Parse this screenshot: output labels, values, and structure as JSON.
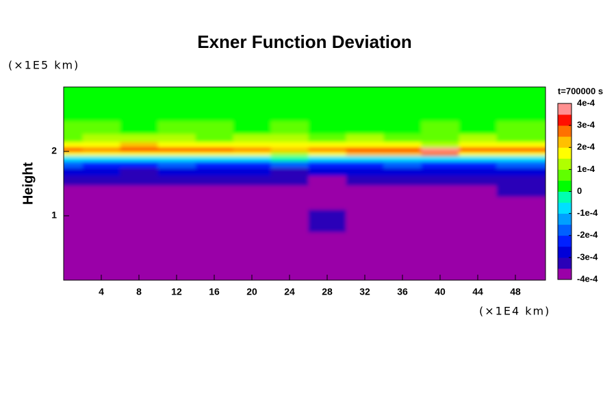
{
  "chart_data": {
    "type": "contour",
    "title": "Exner Function Deviation",
    "y_label": "Height",
    "y_unit": "(×1E5 km)",
    "x_unit": "(×1E4 km)",
    "colorbar_title": "t=700000 s",
    "xlim": [
      0,
      51.2
    ],
    "ylim": [
      0,
      3
    ],
    "xticks": [
      4,
      8,
      12,
      16,
      20,
      24,
      28,
      32,
      36,
      40,
      44,
      48
    ],
    "yticks": [
      1,
      2
    ],
    "zlim": [
      -0.0004,
      0.0004
    ],
    "zticks": [
      {
        "value": 0.0004,
        "label": "4e-4"
      },
      {
        "value": 0.0003,
        "label": "3e-4"
      },
      {
        "value": 0.0002,
        "label": "2e-4"
      },
      {
        "value": 0.0001,
        "label": "1e-4"
      },
      0,
      {
        "value": -0.0001,
        "label": "-1e-4"
      },
      {
        "value": -0.0002,
        "label": "-2e-4"
      },
      {
        "value": -0.0003,
        "label": "-3e-4"
      },
      {
        "value": -0.0004,
        "label": "-4e-4"
      }
    ],
    "colors": [
      "#9a00a8",
      "#2a00b8",
      "#0000d8",
      "#0020ff",
      "#0060ff",
      "#00a0ff",
      "#00e0ff",
      "#00ffb0",
      "#00ff00",
      "#60ff00",
      "#b0ff00",
      "#ffff00",
      "#ffc000",
      "#ff7000",
      "#ff1000",
      "#ff9090"
    ],
    "x": [
      0,
      4,
      8,
      12,
      16,
      20,
      24,
      28,
      32,
      36,
      40,
      44,
      48
    ],
    "y": [
      0.5,
      1.0,
      1.2,
      1.4,
      1.55,
      1.7,
      1.8,
      1.9,
      1.97,
      2.03,
      2.1,
      2.2,
      2.35,
      2.6,
      2.85
    ],
    "z": [
      [
        -0.0004,
        -0.0004,
        -0.0004,
        -0.0004,
        -0.0004,
        -0.0004,
        -0.0004,
        -0.0004,
        -0.0004,
        -0.0004,
        -0.0004,
        -0.0004,
        -0.0004
      ],
      [
        -0.0004,
        -0.0004,
        -0.0004,
        -0.0004,
        -0.0004,
        -0.0004,
        -0.0004,
        -0.00034,
        -0.00036,
        -0.0004,
        -0.0004,
        -0.0004,
        -0.0004
      ],
      [
        -0.00037,
        -0.0004,
        -0.0004,
        -0.0004,
        -0.0004,
        -0.0004,
        -0.0004,
        -0.0004,
        -0.0004,
        -0.0004,
        -0.0004,
        -0.00038,
        -0.00036
      ],
      [
        -0.00036,
        -0.00037,
        -0.00038,
        -0.0004,
        -0.00038,
        -0.00037,
        -0.00037,
        -0.0004,
        -0.0004,
        -0.0004,
        -0.0004,
        -0.00036,
        -0.00035
      ],
      [
        -0.00033,
        -0.00034,
        -0.00035,
        -0.00033,
        -0.00034,
        -0.00035,
        -0.00034,
        -0.00036,
        -0.00033,
        -0.00035,
        -0.00034,
        -0.00033,
        -0.00032
      ],
      [
        -0.00029,
        -0.0003,
        -0.00031,
        -0.0003,
        -0.00029,
        -0.0003,
        -0.00031,
        -0.0003,
        -0.00028,
        -0.0003,
        -0.00029,
        -0.0003,
        -0.00028
      ],
      [
        -0.0002,
        -0.00022,
        -0.00021,
        -0.0002,
        -0.00023,
        -0.00022,
        -0.0002,
        -0.00021,
        -0.00022,
        -0.0002,
        -0.00021,
        -0.00022,
        -0.0002
      ],
      [
        -8e-05,
        -0.0001,
        -9e-05,
        -7e-05,
        -0.0001,
        -8e-05,
        -5e-05,
        -6e-05,
        -8e-05,
        -9e-05,
        -7e-05,
        -0.0001,
        -8e-05
      ],
      [
        0.00018,
        0.00016,
        0.00015,
        0.00018,
        0.00019,
        0.00017,
        0.00014,
        0.00015,
        0.0002,
        0.00024,
        0.00026,
        0.00018,
        0.00016
      ],
      [
        0.0003,
        0.00029,
        0.00031,
        0.00032,
        0.00031,
        0.00028,
        0.00022,
        0.00028,
        0.0003,
        0.00034,
        0.00036,
        0.00031,
        0.0003
      ],
      [
        0.00016,
        0.00018,
        0.0002,
        0.00019,
        0.00018,
        0.00017,
        0.00019,
        0.00016,
        0.00017,
        0.00015,
        0.00014,
        0.00016,
        0.00015
      ],
      [
        9e-05,
        0.00011,
        0.0001,
        0.00012,
        9e-05,
        0.0001,
        0.00011,
        9e-05,
        0.0001,
        8e-05,
        9e-05,
        0.0001,
        8e-05
      ],
      [
        5e-05,
        6e-05,
        4e-05,
        6e-05,
        5e-05,
        4e-05,
        5e-05,
        4e-05,
        3e-05,
        4e-05,
        5e-05,
        4e-05,
        5e-05
      ],
      [
        2e-05,
        2e-05,
        2e-05,
        2e-05,
        2e-05,
        2e-05,
        2e-05,
        2e-05,
        2e-05,
        2e-05,
        2e-05,
        2e-05,
        2e-05
      ],
      [
        0,
        0,
        0,
        0,
        0,
        0,
        0,
        0,
        0,
        0,
        0,
        0,
        0
      ]
    ]
  }
}
